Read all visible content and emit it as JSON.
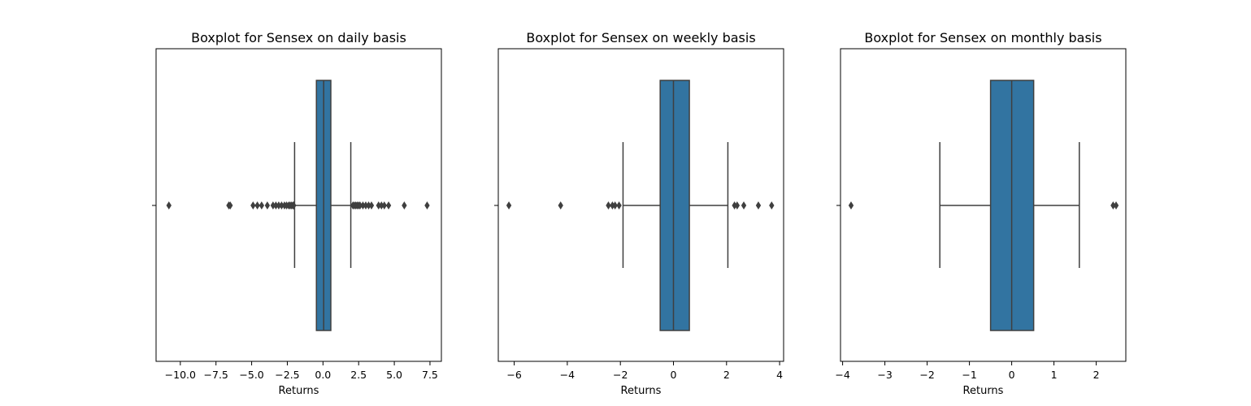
{
  "chart_data": [
    {
      "type": "boxplot",
      "title": "Boxplot for Sensex on daily basis",
      "xlabel": "Returns",
      "xlim": [
        -11.7,
        8.3
      ],
      "xticks": [
        -10.0,
        -7.5,
        -5.0,
        -2.5,
        0.0,
        2.5,
        5.0,
        7.5
      ],
      "xtick_labels": [
        "−10.0",
        "−7.5",
        "−5.0",
        "−2.5",
        "0.0",
        "2.5",
        "5.0",
        "7.5"
      ],
      "box": {
        "whisker_low": -1.99,
        "q1": -0.46,
        "median": 0.05,
        "q3": 0.55,
        "whisker_high": 1.95
      },
      "outliers": [
        -10.8,
        -6.6,
        -6.5,
        -4.9,
        -4.6,
        -4.3,
        -3.9,
        -3.5,
        -3.3,
        -3.1,
        -2.9,
        -2.7,
        -2.55,
        -2.4,
        -2.3,
        -2.2,
        -2.1,
        -2.05,
        2.1,
        2.2,
        2.3,
        2.4,
        2.5,
        2.6,
        2.8,
        3.0,
        3.2,
        3.4,
        3.9,
        4.1,
        4.3,
        4.6,
        5.7,
        7.3
      ],
      "color": "#3274a1",
      "grid": false
    },
    {
      "type": "boxplot",
      "title": "Boxplot for Sensex on weekly basis",
      "xlabel": "Returns",
      "xlim": [
        -6.6,
        4.15
      ],
      "xticks": [
        -6,
        -4,
        -2,
        0,
        2,
        4
      ],
      "xtick_labels": [
        "−6",
        "−4",
        "−2",
        "0",
        "2",
        "4"
      ],
      "box": {
        "whisker_low": -1.9,
        "q1": -0.5,
        "median": 0.0,
        "q3": 0.6,
        "whisker_high": 2.05
      },
      "outliers": [
        -6.2,
        -4.25,
        -2.45,
        -2.3,
        -2.2,
        -2.05,
        2.3,
        2.4,
        2.65,
        3.2,
        3.7
      ],
      "color": "#3274a1",
      "grid": false
    },
    {
      "type": "boxplot",
      "title": "Boxplot for Sensex on monthly basis",
      "xlabel": "Returns",
      "xlim": [
        -4.05,
        2.7
      ],
      "xticks": [
        -4,
        -3,
        -2,
        -1,
        0,
        1,
        2
      ],
      "xtick_labels": [
        "−4",
        "−3",
        "−2",
        "−1",
        "0",
        "1",
        "2"
      ],
      "box": {
        "whisker_low": -1.7,
        "q1": -0.5,
        "median": 0.0,
        "q3": 0.52,
        "whisker_high": 1.6
      },
      "outliers": [
        -3.8,
        2.4,
        2.47
      ],
      "color": "#3274a1",
      "grid": false
    }
  ]
}
